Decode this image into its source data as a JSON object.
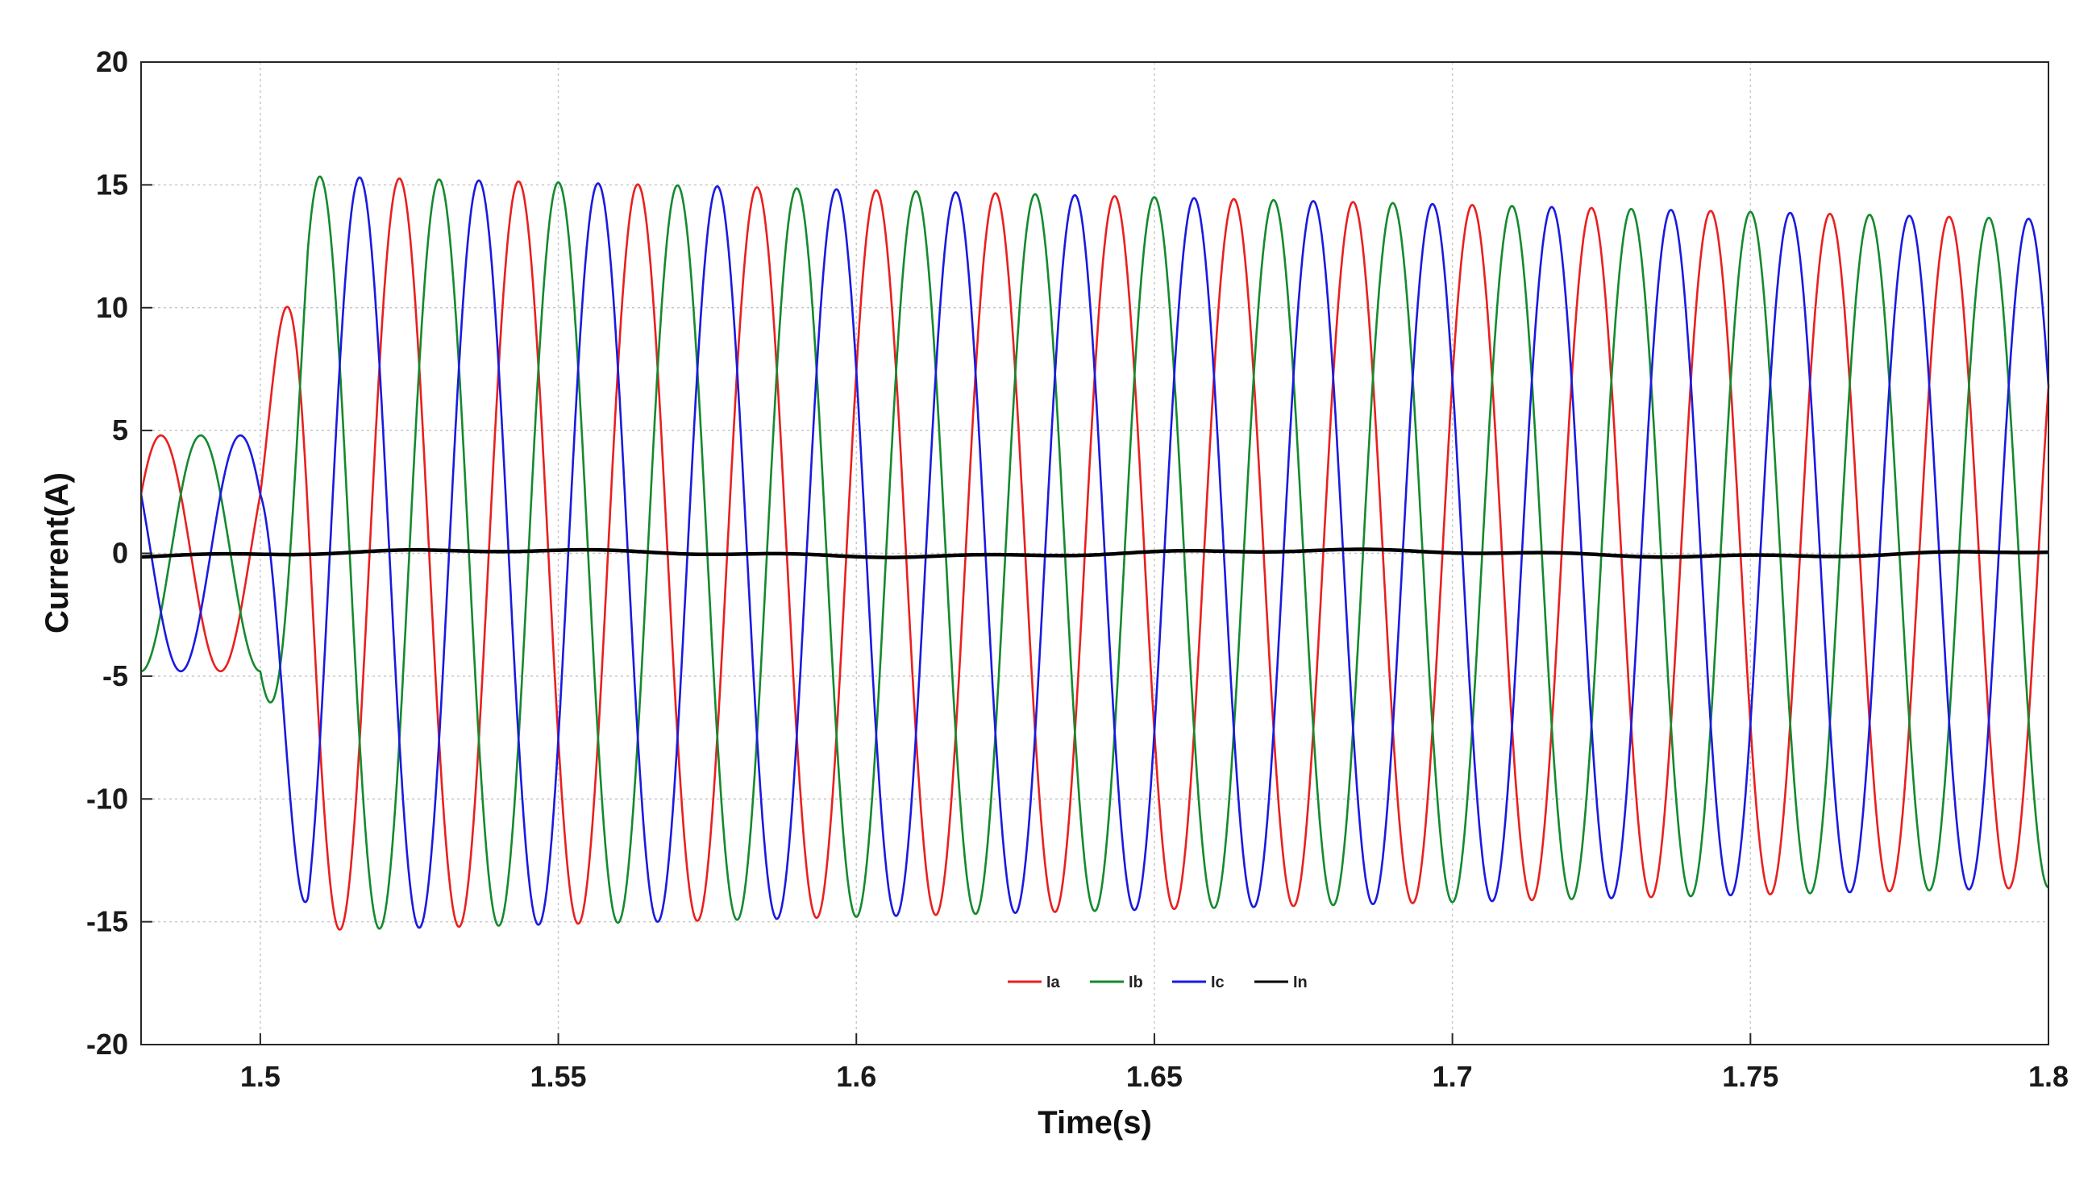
{
  "chart_data": {
    "type": "line",
    "title": "",
    "xlabel": "Time(s)",
    "ylabel": "Current(A)",
    "xlim": [
      1.48,
      1.8
    ],
    "ylim": [
      -20,
      20
    ],
    "xticks": [
      1.5,
      1.55,
      1.6,
      1.65,
      1.7,
      1.75,
      1.8
    ],
    "xtick_labels": [
      "1.5",
      "1.55",
      "1.6",
      "1.65",
      "1.7",
      "1.75",
      "1.8"
    ],
    "yticks": [
      20,
      15,
      10,
      5,
      0,
      -5,
      -10,
      -15,
      -20
    ],
    "ytick_labels": [
      "20",
      "15",
      "10",
      "5",
      "0",
      "-5",
      "-10",
      "-15",
      "-20"
    ],
    "grid": true,
    "legend_position": "bottom-center",
    "frequency_hz": 50,
    "step_time_s": 1.5,
    "series": [
      {
        "name": "Ia",
        "color": "#e8201f",
        "phase_deg": 30,
        "amplitude_before": 4.8,
        "amplitude_after_start": 15.4,
        "amplitude_after_end": 13.6
      },
      {
        "name": "Ib",
        "color": "#148a2e",
        "phase_deg": -90,
        "amplitude_before": 4.8,
        "amplitude_after_start": 15.4,
        "amplitude_after_end": 13.6
      },
      {
        "name": "Ic",
        "color": "#1a1ae0",
        "phase_deg": 150,
        "amplitude_before": 4.8,
        "amplitude_after_start": 15.4,
        "amplitude_after_end": 13.6
      },
      {
        "name": "In",
        "color": "#000000",
        "value": 0
      }
    ]
  }
}
